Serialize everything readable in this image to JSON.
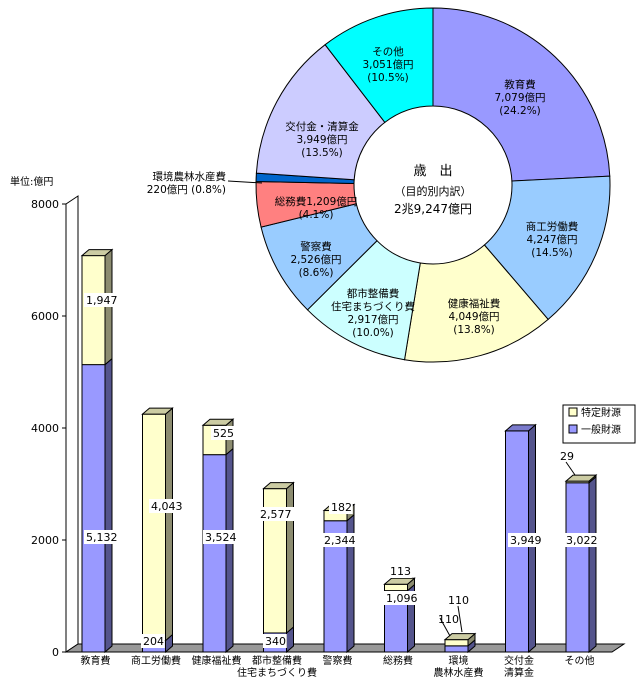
{
  "chart_data": [
    {
      "type": "bar",
      "stacked": true,
      "unit_label": "単位:億円",
      "ylim": [
        0,
        8000
      ],
      "yticks": [
        0,
        2000,
        4000,
        6000,
        8000
      ],
      "categories": [
        [
          "教育費"
        ],
        [
          "商工労働費"
        ],
        [
          "健康福祉費"
        ],
        [
          "都市整備費",
          "住宅まちづくり費"
        ],
        [
          "警察費"
        ],
        [
          "総務費"
        ],
        [
          "環境",
          "農林水産費"
        ],
        [
          "交付金",
          "清算金"
        ],
        [
          "その他"
        ]
      ],
      "series": [
        {
          "name": "一般財源",
          "color": "#9999ff",
          "values": [
            5132,
            204,
            3524,
            340,
            2344,
            1096,
            110,
            3949,
            3022
          ],
          "labels": [
            "5,132",
            "204",
            "3,524",
            "340",
            "2,344",
            "1,096",
            "110",
            "3,949",
            "3,022"
          ]
        },
        {
          "name": "特定財源",
          "color": "#ffffcc",
          "values": [
            1947,
            4043,
            525,
            2577,
            182,
            113,
            110,
            0,
            29
          ],
          "labels": [
            "1,947",
            "4,043",
            "525",
            "2,577",
            "182",
            "113",
            "110",
            "",
            "29"
          ]
        }
      ],
      "legend": "right"
    },
    {
      "type": "pie",
      "donut": true,
      "center_title": "歳　出",
      "center_subtitle": "（目的別内訳）",
      "center_total": "2兆9,247億円",
      "slices": [
        {
          "lines": [
            "教育費",
            "7,079億円",
            "(24.2%)"
          ],
          "value": 7079,
          "percent": 24.2,
          "color": "#9999ff"
        },
        {
          "lines": [
            "商工労働費",
            "4,247億円",
            "(14.5%)"
          ],
          "value": 4247,
          "percent": 14.5,
          "color": "#99ccff"
        },
        {
          "lines": [
            "健康福祉費",
            "4,049億円",
            "(13.8%)"
          ],
          "value": 4049,
          "percent": 13.8,
          "color": "#ffffcc"
        },
        {
          "lines": [
            "都市整備費",
            "住宅まちづくり費",
            "2,917億円",
            "(10.0%)"
          ],
          "value": 2917,
          "percent": 10.0,
          "color": "#ccffff"
        },
        {
          "lines": [
            "警察費",
            "2,526億円",
            "(8.6%)"
          ],
          "value": 2526,
          "percent": 8.6,
          "color": "#99ccff"
        },
        {
          "lines": [
            "総務費1,209億円",
            "(4.1%)"
          ],
          "value": 1209,
          "percent": 4.1,
          "color": "#ff8080"
        },
        {
          "lines": [
            "環境農林水産費",
            "220億円 (0.8%)"
          ],
          "value": 220,
          "percent": 0.8,
          "color": "#0066cc"
        },
        {
          "lines": [
            "交付金・清算金",
            "3,949億円",
            "(13.5%)"
          ],
          "value": 3949,
          "percent": 13.5,
          "color": "#ccccff"
        },
        {
          "lines": [
            "その他",
            "3,051億円",
            "(10.5%)"
          ],
          "value": 3051,
          "percent": 10.5,
          "color": "#00ffff"
        }
      ]
    }
  ]
}
